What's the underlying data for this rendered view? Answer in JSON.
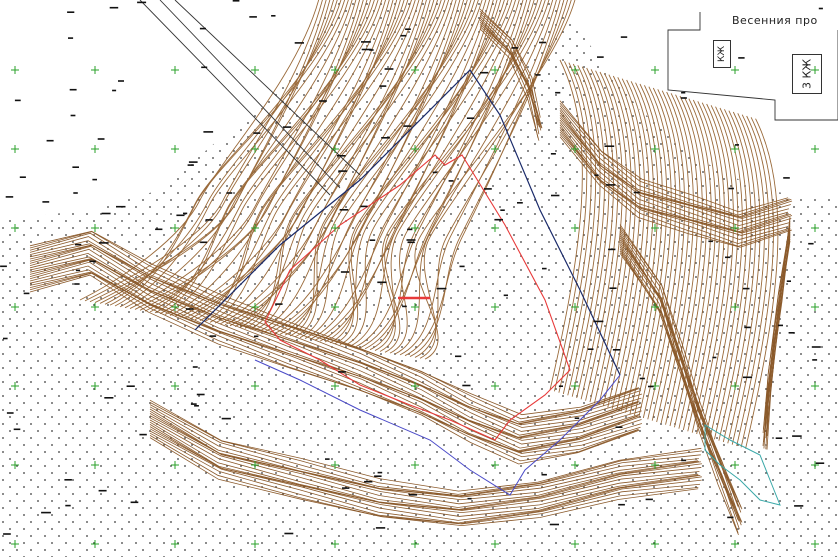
{
  "map": {
    "street_label": "Весенния про",
    "building_label_1": "КЖ",
    "building_label_2": "3 КЖ",
    "contour_color": "#9a6a3a",
    "dense_contour_color": "#8b5a2b",
    "plot_boundary_color": "#e83a3a",
    "outer_boundary_color": "#4a4ac8",
    "road_color": "#1a2a6a",
    "grid_cross_color": "#2aa02a",
    "water_outline_color": "#3aa8a8"
  }
}
